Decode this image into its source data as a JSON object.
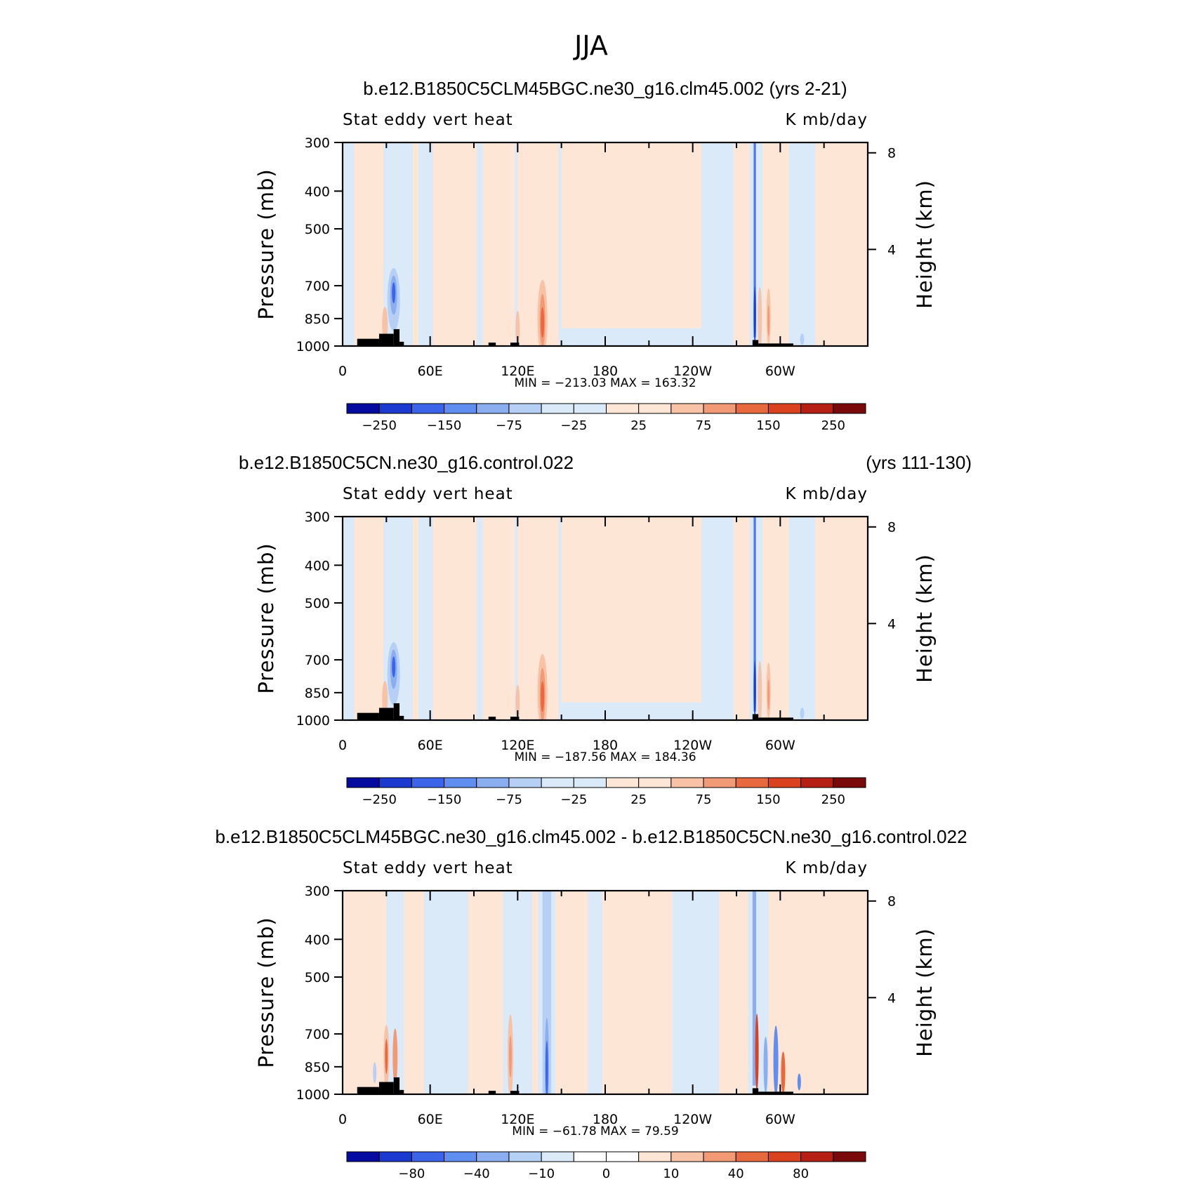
{
  "title": "JJA",
  "colors": {
    "positive": [
      "#fde6d6",
      "#f8c2a6",
      "#f29a76",
      "#e9693f",
      "#d9411f",
      "#b51f14",
      "#7a0a0a"
    ],
    "negative": [
      "#daeaf9",
      "#b6cff4",
      "#8aaeef",
      "#5f8df0",
      "#3b64e8",
      "#1c3ad0",
      "#040b9e"
    ],
    "topography": "#000000"
  },
  "panels": [
    {
      "id": "p1",
      "header_left": "b.e12.B1850C5CLM45BGC.ne30_g16.clm45.002 (yrs 2-21)",
      "header_right": "",
      "subtitle_left": "Stat eddy vert heat",
      "subtitle_right": "K mb/day",
      "min_max": "MIN = −213.03   MAX = 163.32",
      "colorbar_ticks": [
        "−250",
        "−150",
        "−75",
        "−25",
        "25",
        "75",
        "150",
        "250"
      ]
    },
    {
      "id": "p2",
      "header_left": "b.e12.B1850C5CN.ne30_g16.control.022",
      "header_right": "(yrs 111-130)",
      "subtitle_left": "Stat eddy vert heat",
      "subtitle_right": "K mb/day",
      "min_max": "MIN = −187.56   MAX = 184.36",
      "colorbar_ticks": [
        "−250",
        "−150",
        "−75",
        "−25",
        "25",
        "75",
        "150",
        "250"
      ]
    },
    {
      "id": "p3",
      "header_left": "b.e12.B1850C5CLM45BGC.ne30_g16.clm45.002 - b.e12.B1850C5CN.ne30_g16.control.022",
      "header_right": "",
      "subtitle_left": "Stat eddy vert heat",
      "subtitle_right": "K mb/day",
      "min_max": "MIN = −61.78   MAX =   79.59",
      "colorbar_ticks": [
        "−80",
        "−40",
        "−10",
        "0",
        "10",
        "40",
        "80"
      ]
    }
  ],
  "axes": {
    "ylabel_left": "Pressure (mb)",
    "ylabel_right": "Height (km)",
    "pressure_ticks": [
      "300",
      "400",
      "500",
      "700",
      "850",
      "1000"
    ],
    "height_ticks": [
      "8",
      "4"
    ],
    "lon_ticks": [
      "0",
      "60E",
      "120E",
      "180",
      "120W",
      "60W"
    ]
  },
  "chart_data": [
    {
      "type": "heatmap",
      "panel": "p1",
      "title": "b.e12.B1850C5CLM45BGC.ne30_g16.clm45.002 (yrs 2-21)",
      "variable": "Stat eddy vert heat",
      "units": "K mb/day",
      "xlabel": "",
      "ylabel": "Pressure (mb)",
      "ylabel_right": "Height (km)",
      "xlim": [
        0,
        360
      ],
      "ylim": [
        1000,
        300
      ],
      "yscale": "log",
      "min": -213.03,
      "max": 163.32,
      "contour_levels": [
        -300,
        -250,
        -200,
        -150,
        -100,
        -75,
        -50,
        -25,
        0,
        25,
        50,
        75,
        100,
        150,
        200,
        250,
        300
      ],
      "features": [
        {
          "lon": 282,
          "p_top": 300,
          "p_bot": 950,
          "sign": -1,
          "level": 5,
          "desc": "narrow strong negative column"
        },
        {
          "lon": 137,
          "p_top": 650,
          "p_bot": 930,
          "sign": 1,
          "level": 4
        },
        {
          "lon": 35,
          "p_top": 660,
          "p_bot": 850,
          "sign": -1,
          "level": 4
        },
        {
          "lon": 285,
          "p_top": 700,
          "p_bot": 900,
          "sign": 1,
          "level": 3
        }
      ]
    },
    {
      "type": "heatmap",
      "panel": "p2",
      "title": "b.e12.B1850C5CN.ne30_g16.control.022 (yrs 111-130)",
      "variable": "Stat eddy vert heat",
      "units": "K mb/day",
      "xlabel": "",
      "ylabel": "Pressure (mb)",
      "ylabel_right": "Height (km)",
      "xlim": [
        0,
        360
      ],
      "ylim": [
        1000,
        300
      ],
      "yscale": "log",
      "min": -187.56,
      "max": 184.36,
      "contour_levels": [
        -300,
        -250,
        -200,
        -150,
        -100,
        -75,
        -50,
        -25,
        0,
        25,
        50,
        75,
        100,
        150,
        200,
        250,
        300
      ],
      "features": [
        {
          "lon": 282,
          "p_top": 300,
          "p_bot": 950,
          "sign": -1,
          "level": 5
        },
        {
          "lon": 137,
          "p_top": 650,
          "p_bot": 930,
          "sign": 1,
          "level": 4
        },
        {
          "lon": 35,
          "p_top": 660,
          "p_bot": 850,
          "sign": -1,
          "level": 4
        }
      ]
    },
    {
      "type": "heatmap",
      "panel": "p3",
      "title": "b.e12.B1850C5CLM45BGC.ne30_g16.clm45.002 - b.e12.B1850C5CN.ne30_g16.control.022",
      "variable": "Stat eddy vert heat",
      "units": "K mb/day",
      "xlabel": "",
      "ylabel": "Pressure (mb)",
      "ylabel_right": "Height (km)",
      "xlim": [
        0,
        360
      ],
      "ylim": [
        1000,
        300
      ],
      "yscale": "log",
      "min": -61.78,
      "max": 79.59,
      "contour_levels": [
        -100,
        -80,
        -60,
        -40,
        -20,
        -10,
        -5,
        0,
        5,
        10,
        20,
        40,
        60,
        80,
        100
      ],
      "features": [
        {
          "lon": 140,
          "p_top": 300,
          "p_bot": 1000,
          "sign": -1,
          "level": 3
        },
        {
          "lon": 284,
          "p_top": 650,
          "p_bot": 900,
          "sign": 1,
          "level": 5
        },
        {
          "lon": 30,
          "p_top": 700,
          "p_bot": 900,
          "sign": 1,
          "level": 3
        },
        {
          "lon": 300,
          "p_top": 700,
          "p_bot": 950,
          "sign": -1,
          "level": 4
        }
      ]
    }
  ]
}
